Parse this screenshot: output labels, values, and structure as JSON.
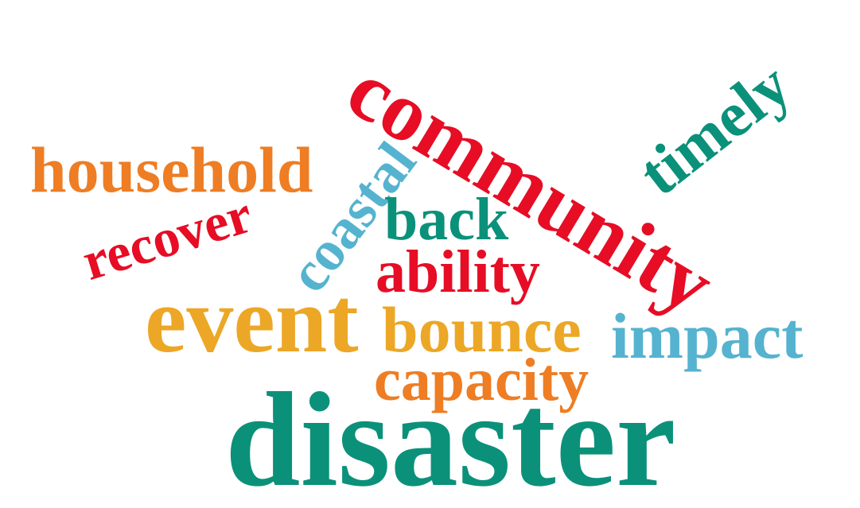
{
  "words": {
    "community": "community",
    "timely": "timely",
    "household": "household",
    "coastal": "coastal",
    "recover": "recover",
    "back": "back",
    "ability": "ability",
    "event": "event",
    "bounce": "bounce",
    "impact": "impact",
    "capacity": "capacity",
    "disaster": "disaster"
  },
  "colors": {
    "red": "#e60d25",
    "teal": "#0b917a",
    "orange": "#ee7d24",
    "gold": "#eca726",
    "blue": "#55b3cf"
  }
}
